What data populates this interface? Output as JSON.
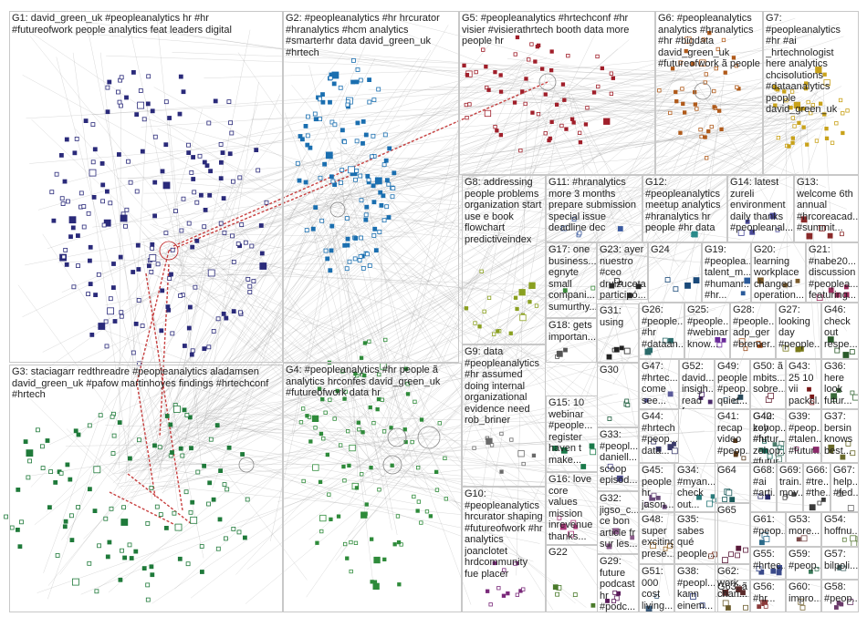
{
  "groups": [
    {
      "id": "G1",
      "label": "G1: david_green_uk #peopleanalytics hr #hr\n#futureofwork people analytics feat leaders digital",
      "color": "#2a2a7a"
    },
    {
      "id": "G2",
      "label": "G2: #peopleanalytics #hr hrcurator\n#hranalytics #hcm analytics\n#smarterhr data david_green_uk\n#hrtech",
      "color": "#1a6fb0"
    },
    {
      "id": "G3",
      "label": "G3: staciagarr redthreadre #peopleanalytics aladamsen\ndavid_green_uk #pafow martinhoyes findings #hrtechconf\n#hrtech",
      "color": "#1f7a3a"
    },
    {
      "id": "G4",
      "label": "G4: #peopleanalytics #hr people ã\nanalytics hrconfes david_green_uk\n#futureofwork data hr",
      "color": "#2e8b3a"
    },
    {
      "id": "G5",
      "label": "G5: #peopleanalytics #hrtechconf #hr\nvisier #visierathrtech booth data more\npeople hr",
      "color": "#a01f2a"
    },
    {
      "id": "G6",
      "label": "G6: #peopleanalytics\nanalytics #hranalytics\n#hr #bigdata\ndavid_green_uk\n#futureofwork ã people",
      "color": "#b05a1a"
    },
    {
      "id": "G7",
      "label": "G7: #peopleanalytics\n#hr #ai\n_hrtechnologist\nhere analytics\nchcisolutions\n#dataanalytics\npeople\ndavid_green_uk",
      "color": "#c9a21a"
    },
    {
      "id": "G8",
      "label": "G8: addressing\npeople problems\norganization start\nuse e book\nflowchart\npredictiveindex",
      "color": "#8aa020"
    },
    {
      "id": "G9",
      "label": "G9: data\n#peopleanalytics\n#hr assumed\ndoing internal\norganizational\nevidence need\nrob_briner",
      "color": "#6a6a6a"
    },
    {
      "id": "G10",
      "label": "G10:\n#peopleanalytics\nhrcurator shaping\n#futureofwork #hr\nanalytics\njoanclotet\nhrdcommunity\nfue placer",
      "color": "#7a2a7a"
    },
    {
      "id": "G11",
      "label": "G11: #hranalytics\nmore 3 months\nprepare submission\nspecial issue\ndeadline dec",
      "color": "#3a5aa0"
    },
    {
      "id": "G12",
      "label": "G12:\n#peopleanalytics\nmeetup analytics\n#hranalytics hr\npeople #hr data",
      "color": "#2a8a8a"
    },
    {
      "id": "G13",
      "label": "G13:\nwelcome 6th\nannual\n#hrcoreacad...\n#summit...",
      "color": "#8a2a2a"
    },
    {
      "id": "G14",
      "label": "G14: latest\nzureli\nenvironment\ndaily thanks\n#peopleanal...",
      "color": "#4a4a9a"
    },
    {
      "id": "G15",
      "label": "G15: 10\nwebinar\n#people...\nregister\nhaven t\nmake...",
      "color": "#1a7a4a"
    },
    {
      "id": "G16",
      "label": "G16: love\ncore\nvalues\nmission\ninrevenue\nthanks...",
      "color": "#aa3a7a"
    },
    {
      "id": "G17",
      "label": "G17: one\nbusiness...\negnyte\nsmall\ncompani...\nsumurthy...",
      "color": "#3a8a3a"
    },
    {
      "id": "G18",
      "label": "G18: gets\nimportan...",
      "color": "#555555"
    },
    {
      "id": "G19",
      "label": "G19:\n#peoplea...\ntalent_m...\n#humanr...\n#hr...",
      "color": "#2a5a9a"
    },
    {
      "id": "G20",
      "label": "G20:\nlearning\nworkplace\nchanged\noperation...",
      "color": "#7a5a2a"
    },
    {
      "id": "G21",
      "label": "G21:\n#nabe20...\ndiscussion\n#peoplea...\nfeaturing...",
      "color": "#9a2a5a"
    },
    {
      "id": "G22",
      "label": "G22",
      "color": "#4a7a2a"
    },
    {
      "id": "G23",
      "label": "G23: ayer\nnuestro\n#ceo\ndruizuceta\nparticipó...",
      "color": "#2a2a2a"
    },
    {
      "id": "G24",
      "label": "G24",
      "color": "#1a4a7a"
    },
    {
      "id": "G25",
      "label": "G25:\n#people...\n#webinar\nknow...",
      "color": "#6a2a9a"
    },
    {
      "id": "G26",
      "label": "G26:\n#people...\n#hr\n#dataan...",
      "color": "#2a6a6a"
    },
    {
      "id": "G27",
      "label": "G27:\nlooking\nday\n#people...",
      "color": "#7a7a1a"
    },
    {
      "id": "G28",
      "label": "G28:\n#people...\nadp_ger\n#bremer...",
      "color": "#9a4a1a"
    },
    {
      "id": "G29",
      "label": "G29:\nfuture\npodcast\nhr\n#podc...",
      "color": "#5a1a5a"
    },
    {
      "id": "G30",
      "label": "G30",
      "color": "#1a5a3a"
    },
    {
      "id": "G31",
      "label": "G31:\nusing",
      "color": "#222222"
    },
    {
      "id": "G32",
      "label": "G32:\njigso_c...\nce bon\narticle fr\nsur les...",
      "color": "#8a5a8a"
    },
    {
      "id": "G33",
      "label": "G33:\n#peopl...\ndaniell...\nscoop\nepisod...",
      "color": "#4a4a8a"
    },
    {
      "id": "G34",
      "label": "G34:\n#myan...\ncheck\nout...",
      "color": "#2a7a7a"
    },
    {
      "id": "G35",
      "label": "G35:\nsabes\nqué\npeople...",
      "color": "#7a3a2a"
    },
    {
      "id": "G36",
      "label": "G36:\nhere\nlook\nfutur...",
      "color": "#3a6a3a"
    },
    {
      "id": "G37",
      "label": "G37:\nbersin\nknows\nbest...",
      "color": "#6a6a2a"
    },
    {
      "id": "G38",
      "label": "G38:\n#peopl...\nkann\neinem...",
      "color": "#2a3a7a"
    },
    {
      "id": "G39",
      "label": "G39:\n#peop...\n#talen...\n#futur...",
      "color": "#8a2a6a"
    },
    {
      "id": "G40",
      "label": "G40:\nzohop...\n#futur...",
      "color": "#4a7a6a"
    },
    {
      "id": "G41",
      "label": "G41:\nrecap\nvideo\n#peop...",
      "color": "#5a3a1a"
    },
    {
      "id": "G42",
      "label": "G42:\nkey #hr\nzohop...\n#futur...",
      "color": "#1a6a5a"
    },
    {
      "id": "G43",
      "label": "G43:\n25 10\nvii\npackcl...",
      "color": "#7a1a1a"
    },
    {
      "id": "G44",
      "label": "G44:\n#hrtech\n#peop...\ndata...",
      "color": "#3a3a6a"
    },
    {
      "id": "G45",
      "label": "G45:\npeople\nhr\njason...",
      "color": "#6a4a7a"
    },
    {
      "id": "G46",
      "label": "G46:\ncheck\nout\nrespe...",
      "color": "#2a5a2a"
    },
    {
      "id": "G47",
      "label": "G47:\n#hrtec...\ncome\nsee...",
      "color": "#5a5a9a"
    },
    {
      "id": "G48",
      "label": "G48:\nsuper\nexciting\nprese...",
      "color": "#9a6a2a"
    },
    {
      "id": "G49",
      "label": "G49:\npeople\n#peop...\nquiet...",
      "color": "#2a4a5a"
    },
    {
      "id": "G50",
      "label": "G50: ã\nmbits...\nsobre...",
      "color": "#6a2a3a"
    },
    {
      "id": "G51",
      "label": "G51:\n000\ncost\nliving...",
      "color": "#3a5a7a"
    },
    {
      "id": "G52",
      "label": "G52:\ndavid...\ninsigh...\nread f...",
      "color": "#4a2a6a"
    },
    {
      "id": "G53",
      "label": "G53:\nmore...",
      "color": "#7a4a4a"
    },
    {
      "id": "G54",
      "label": "G54:\nhoffnu...",
      "color": "#5a7a3a"
    },
    {
      "id": "G55",
      "label": "G55:\n#hrtec...",
      "color": "#3a4a8a"
    },
    {
      "id": "G56",
      "label": "G56:\n#hr...",
      "color": "#8a3a3a"
    },
    {
      "id": "G57",
      "label": "G57:\nbilpoli...",
      "color": "#4a6a6a"
    },
    {
      "id": "G58",
      "label": "G58:\n#peop...",
      "color": "#6a3a6a"
    },
    {
      "id": "G59",
      "label": "G59:\n#peop...",
      "color": "#3a7a5a"
    },
    {
      "id": "G60",
      "label": "G60:\nimpro...",
      "color": "#7a6a3a"
    },
    {
      "id": "G61",
      "label": "G61:\n#peop...",
      "color": "#2a6a8a"
    },
    {
      "id": "G62",
      "label": "G62:\nwork...\nchan...",
      "color": "#5a2a2a"
    },
    {
      "id": "G63",
      "label": "G63: ã",
      "color": "#6a5a2a"
    },
    {
      "id": "G64",
      "label": "G64",
      "color": "#1a5a5a"
    },
    {
      "id": "G65",
      "label": "G65",
      "color": "#5a1a3a"
    },
    {
      "id": "G66",
      "label": "G66:\n#tre...\n#the...",
      "color": "#3a3a3a"
    },
    {
      "id": "G67",
      "label": "G67:\nhelp...\n#fed...",
      "color": "#6a6a6a"
    },
    {
      "id": "G68",
      "label": "G68:\n#ai\n#arti...",
      "color": "#2a2a6a"
    },
    {
      "id": "G69",
      "label": "G69:\ntrain...\nmov...",
      "color": "#4a4a4a"
    }
  ],
  "colors": {
    "panel_border": "#c8c8c8",
    "edge": "#9a9a9a",
    "edge_strong": "#c02020",
    "background": "#ffffff"
  }
}
